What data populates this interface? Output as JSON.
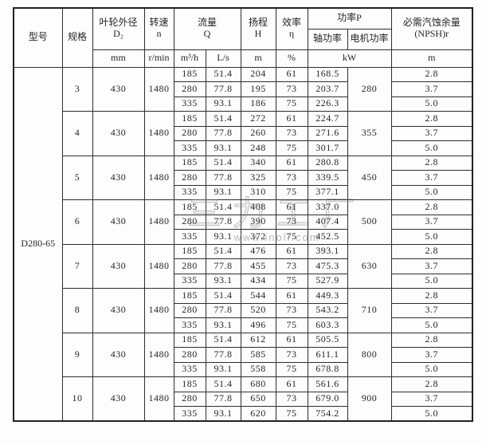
{
  "table": {
    "model": "D280-65",
    "header": {
      "model": "型号",
      "spec": "规格",
      "impeller": [
        "叶轮外径",
        "D₂"
      ],
      "speed": [
        "转速",
        "n"
      ],
      "flow": [
        "流量",
        "Q"
      ],
      "head": [
        "扬程",
        "H"
      ],
      "efficiency": [
        "效率",
        "η"
      ],
      "power": "功率P",
      "shaft_power": "轴功率",
      "motor_power": "电机功率",
      "npsh": [
        "必需汽蚀余量",
        "(NPSH)r"
      ]
    },
    "units": {
      "impeller": "mm",
      "speed": "r/min",
      "flow_m3h": "m³/h",
      "flow_ls": "L/s",
      "head": "m",
      "efficiency": "%",
      "power": "kW",
      "npsh": "m"
    },
    "groups": [
      {
        "spec": "3",
        "impeller_mm": "430",
        "speed_rpm": "1480",
        "motor_kw": "280",
        "rows": [
          {
            "q_m3h": "185",
            "q_ls": "51.4",
            "head_m": "204",
            "eff_pct": "61",
            "shaft_kw": "168.5",
            "npsh_m": "2.8"
          },
          {
            "q_m3h": "280",
            "q_ls": "77.8",
            "head_m": "195",
            "eff_pct": "73",
            "shaft_kw": "203.7",
            "npsh_m": "3.7"
          },
          {
            "q_m3h": "335",
            "q_ls": "93.1",
            "head_m": "186",
            "eff_pct": "75",
            "shaft_kw": "226.3",
            "npsh_m": "5.0"
          }
        ]
      },
      {
        "spec": "4",
        "impeller_mm": "430",
        "speed_rpm": "1480",
        "motor_kw": "355",
        "rows": [
          {
            "q_m3h": "185",
            "q_ls": "51.4",
            "head_m": "272",
            "eff_pct": "61",
            "shaft_kw": "224.7",
            "npsh_m": "2.8"
          },
          {
            "q_m3h": "280",
            "q_ls": "77.8",
            "head_m": "260",
            "eff_pct": "73",
            "shaft_kw": "271.6",
            "npsh_m": "3.7"
          },
          {
            "q_m3h": "335",
            "q_ls": "93.1",
            "head_m": "248",
            "eff_pct": "75",
            "shaft_kw": "301.7",
            "npsh_m": "5.0"
          }
        ]
      },
      {
        "spec": "5",
        "impeller_mm": "430",
        "speed_rpm": "1480",
        "motor_kw": "450",
        "rows": [
          {
            "q_m3h": "185",
            "q_ls": "51.4",
            "head_m": "340",
            "eff_pct": "61",
            "shaft_kw": "280.8",
            "npsh_m": "2.8"
          },
          {
            "q_m3h": "280",
            "q_ls": "77.8",
            "head_m": "325",
            "eff_pct": "73",
            "shaft_kw": "339.5",
            "npsh_m": "3.7"
          },
          {
            "q_m3h": "335",
            "q_ls": "93.1",
            "head_m": "310",
            "eff_pct": "75",
            "shaft_kw": "377.1",
            "npsh_m": "5.0"
          }
        ]
      },
      {
        "spec": "6",
        "impeller_mm": "430",
        "speed_rpm": "1480",
        "motor_kw": "500",
        "rows": [
          {
            "q_m3h": "185",
            "q_ls": "51.4",
            "head_m": "408",
            "eff_pct": "61",
            "shaft_kw": "337.0",
            "npsh_m": "2.8"
          },
          {
            "q_m3h": "280",
            "q_ls": "77.8",
            "head_m": "390",
            "eff_pct": "73",
            "shaft_kw": "407.4",
            "npsh_m": "3.7"
          },
          {
            "q_m3h": "335",
            "q_ls": "93.1",
            "head_m": "372",
            "eff_pct": "75",
            "shaft_kw": "452.5",
            "npsh_m": "5.0"
          }
        ]
      },
      {
        "spec": "7",
        "impeller_mm": "430",
        "speed_rpm": "1480",
        "motor_kw": "630",
        "rows": [
          {
            "q_m3h": "185",
            "q_ls": "51.4",
            "head_m": "476",
            "eff_pct": "61",
            "shaft_kw": "393.1",
            "npsh_m": "2.8"
          },
          {
            "q_m3h": "280",
            "q_ls": "77.8",
            "head_m": "455",
            "eff_pct": "73",
            "shaft_kw": "475.3",
            "npsh_m": "3.7"
          },
          {
            "q_m3h": "335",
            "q_ls": "93.1",
            "head_m": "434",
            "eff_pct": "75",
            "shaft_kw": "527.9",
            "npsh_m": "5.0"
          }
        ]
      },
      {
        "spec": "8",
        "impeller_mm": "430",
        "speed_rpm": "1480",
        "motor_kw": "710",
        "rows": [
          {
            "q_m3h": "185",
            "q_ls": "51.4",
            "head_m": "544",
            "eff_pct": "61",
            "shaft_kw": "449.3",
            "npsh_m": "2.8"
          },
          {
            "q_m3h": "280",
            "q_ls": "77.8",
            "head_m": "520",
            "eff_pct": "73",
            "shaft_kw": "543.2",
            "npsh_m": "3.7"
          },
          {
            "q_m3h": "335",
            "q_ls": "93.1",
            "head_m": "496",
            "eff_pct": "75",
            "shaft_kw": "603.3",
            "npsh_m": "5.0"
          }
        ]
      },
      {
        "spec": "9",
        "impeller_mm": "430",
        "speed_rpm": "1480",
        "motor_kw": "800",
        "rows": [
          {
            "q_m3h": "185",
            "q_ls": "51.4",
            "head_m": "612",
            "eff_pct": "61",
            "shaft_kw": "505.5",
            "npsh_m": "2.8"
          },
          {
            "q_m3h": "280",
            "q_ls": "77.8",
            "head_m": "585",
            "eff_pct": "73",
            "shaft_kw": "611.1",
            "npsh_m": "3.7"
          },
          {
            "q_m3h": "335",
            "q_ls": "93.1",
            "head_m": "558",
            "eff_pct": "75",
            "shaft_kw": "678.8",
            "npsh_m": "5.0"
          }
        ]
      },
      {
        "spec": "10",
        "impeller_mm": "430",
        "speed_rpm": "1480",
        "motor_kw": "900",
        "rows": [
          {
            "q_m3h": "185",
            "q_ls": "51.4",
            "head_m": "680",
            "eff_pct": "61",
            "shaft_kw": "561.6",
            "npsh_m": "2.8"
          },
          {
            "q_m3h": "280",
            "q_ls": "77.8",
            "head_m": "650",
            "eff_pct": "73",
            "shaft_kw": "679.0",
            "npsh_m": "3.7"
          },
          {
            "q_m3h": "335",
            "q_ls": "93.1",
            "head_m": "620",
            "eff_pct": "75",
            "shaft_kw": "754.2",
            "npsh_m": "5.0"
          }
        ]
      }
    ]
  },
  "watermark": {
    "glyphs": "三力工厂",
    "url": "www.inoll.com"
  }
}
